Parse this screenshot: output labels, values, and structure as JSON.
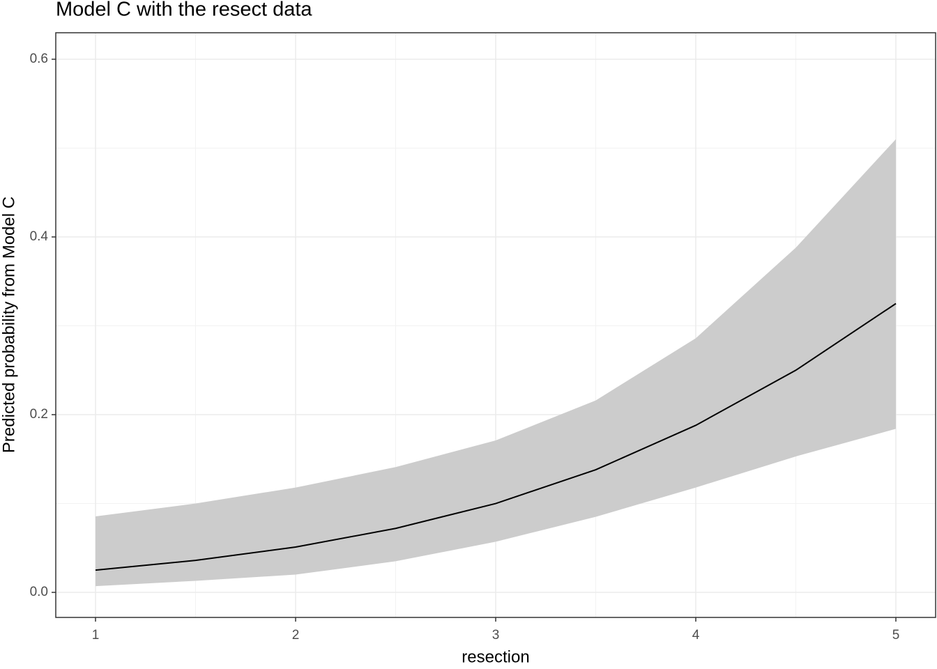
{
  "chart_data": {
    "type": "line",
    "title": "Model C with the resect data",
    "x_label": "resection",
    "y_label": "Predicted probability from Model C",
    "x": [
      1,
      1.5,
      2,
      2.5,
      3,
      3.5,
      4,
      4.5,
      5
    ],
    "series": [
      {
        "values": [
          0.025,
          0.036,
          0.051,
          0.072,
          0.1,
          0.138,
          0.188,
          0.25,
          0.325
        ],
        "lower": [
          0.007,
          0.013,
          0.02,
          0.035,
          0.057,
          0.085,
          0.118,
          0.153,
          0.184
        ],
        "upper": [
          0.0855,
          0.1,
          0.118,
          0.141,
          0.171,
          0.216,
          0.286,
          0.388,
          0.51
        ],
        "color": "#000000",
        "band_color": "#cccccc"
      }
    ],
    "xlim": [
      0.8014,
      5.1986
    ],
    "ylim": [
      -0.0282,
      0.6298
    ],
    "xticks": [
      1,
      2,
      3,
      4,
      5
    ],
    "yticks": [
      {
        "value": 0,
        "label": "0.0"
      },
      0.2,
      0.4,
      0.6
    ],
    "xminor": [
      1.5,
      2.5,
      3.5,
      4.5
    ],
    "yminor": [
      0.1,
      0.3,
      0.5
    ],
    "grid": true
  }
}
